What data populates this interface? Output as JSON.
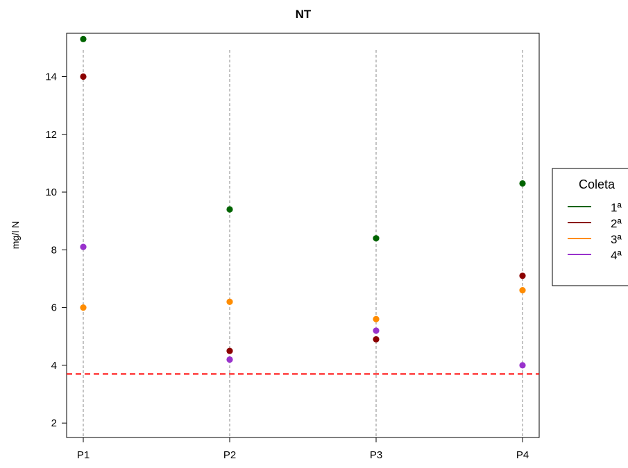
{
  "chart_data": {
    "type": "scatter",
    "title": "NT",
    "ylabel": "mg/l N",
    "xlabel": "",
    "categories": [
      "P1",
      "P2",
      "P3",
      "P4"
    ],
    "ylim": [
      1.5,
      15.5
    ],
    "y_ticks": [
      2,
      4,
      6,
      8,
      10,
      12,
      14
    ],
    "series": [
      {
        "name": "1ª",
        "color": "#006400",
        "values": [
          15.3,
          9.4,
          8.4,
          10.3
        ]
      },
      {
        "name": "2ª",
        "color": "#8B0000",
        "values": [
          14.0,
          4.5,
          4.9,
          7.1
        ]
      },
      {
        "name": "3ª",
        "color": "#FF8C00",
        "values": [
          6.0,
          6.2,
          5.6,
          6.6
        ]
      },
      {
        "name": "4ª",
        "color": "#9932CC",
        "values": [
          8.1,
          4.2,
          5.2,
          4.0
        ]
      }
    ],
    "reference_line": {
      "y": 3.7,
      "color": "#FF0000",
      "style": "dashed"
    },
    "grid": false,
    "vertical_guides": "dashed gray at each category",
    "legend": {
      "title": "Coleta",
      "placement": "right"
    }
  }
}
